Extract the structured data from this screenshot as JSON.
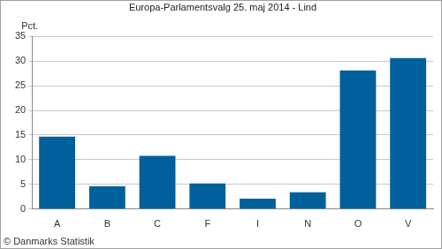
{
  "chart_data": {
    "type": "bar",
    "title": "Europa-Parlamentsvalg 25. maj 2014 - Lind",
    "y_label": "Pct.",
    "source": "© Danmarks Statistik",
    "categories": [
      "A",
      "B",
      "C",
      "F",
      "I",
      "N",
      "O",
      "V"
    ],
    "values": [
      14.7,
      4.6,
      10.8,
      5.2,
      2.1,
      3.4,
      28.1,
      30.6
    ],
    "color": "#00609c",
    "ylim": [
      0,
      35
    ],
    "yticks": [
      0,
      5,
      10,
      15,
      20,
      25,
      30,
      35
    ],
    "grid": true
  }
}
